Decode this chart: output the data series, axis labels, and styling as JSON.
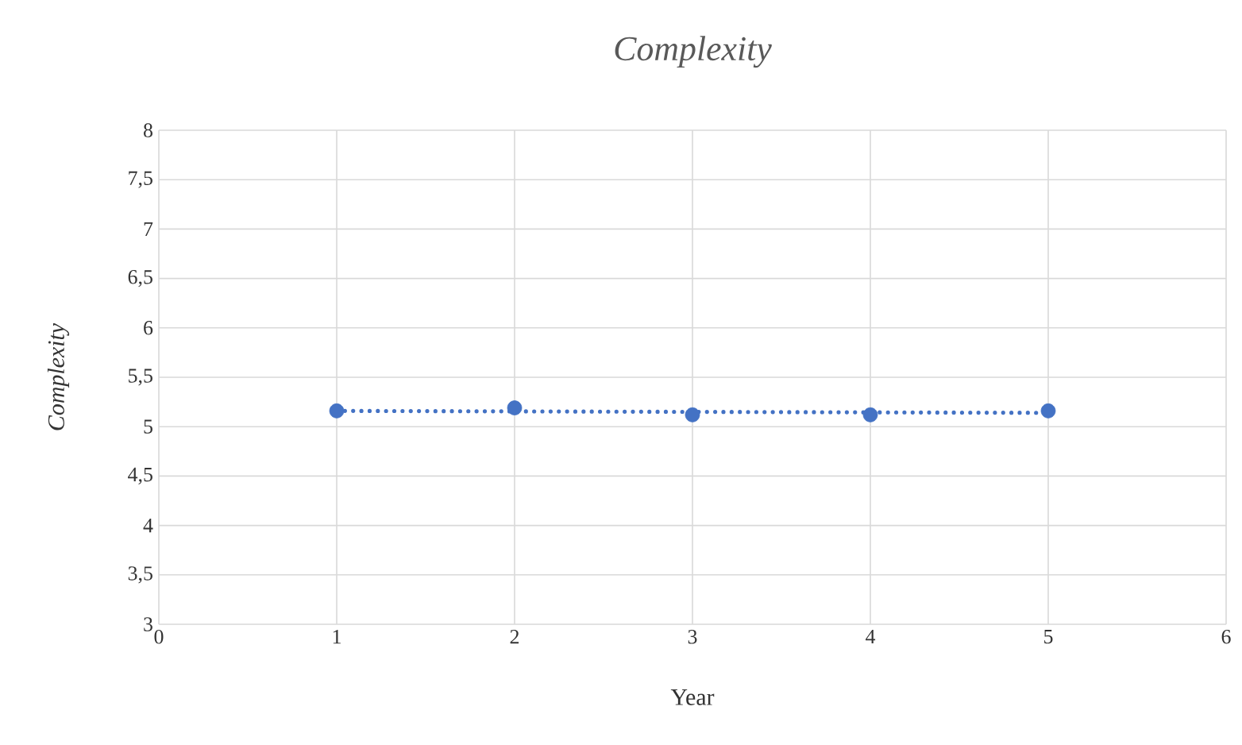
{
  "chart_data": {
    "type": "scatter",
    "title": "*Complexity*",
    "xlabel": "Year",
    "ylabel": "*Complexity*",
    "xlim": [
      0,
      6
    ],
    "xticks": [
      0,
      1,
      2,
      3,
      4,
      5,
      6
    ],
    "ylim": [
      3,
      8
    ],
    "yticks": [
      3,
      {
        "value": 3.5,
        "label": "3,5"
      },
      4,
      {
        "value": 4.5,
        "label": "4,5"
      },
      5,
      {
        "value": 5.5,
        "label": "5,5"
      },
      6,
      {
        "value": 6.5,
        "label": "6,5"
      },
      7,
      {
        "value": 7.5,
        "label": "7,5"
      },
      8
    ],
    "grid": true,
    "series": [
      {
        "marker": "circle",
        "color": "#4472c4",
        "x": [
          1,
          2,
          3,
          4,
          5
        ],
        "values": [
          5.16,
          5.19,
          5.12,
          5.12,
          5.16
        ]
      },
      {
        "type": "line",
        "color": "#4472c4",
        "line_style": "dotted",
        "marker": "none",
        "x": [
          1,
          5
        ],
        "values": [
          5.16,
          5.14
        ]
      }
    ]
  }
}
